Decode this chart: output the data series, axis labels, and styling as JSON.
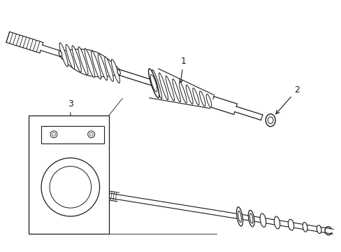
{
  "bg_color": "#ffffff",
  "line_color": "#1a1a1a",
  "label_1": "1",
  "label_2": "2",
  "label_3": "3",
  "figsize": [
    4.89,
    3.6
  ],
  "dpi": 100
}
